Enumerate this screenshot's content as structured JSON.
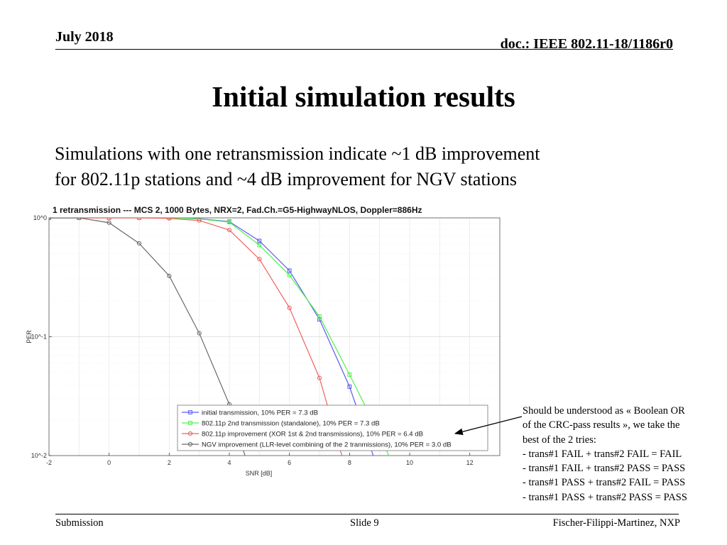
{
  "header": {
    "date": "July 2018",
    "doc": "doc.: IEEE 802.11-18/1186r0"
  },
  "title": "Initial simulation results",
  "body_lines": [
    "Simulations with one retransmission indicate ~1 dB improvement",
    "for 802.11p stations and ~4 dB improvement for NGV stations"
  ],
  "note_lines": [
    "Should be understood as « Boolean OR",
    "of the CRC-pass results », we take the",
    "best of the 2 tries:",
    "- trans#1 FAIL + trans#2 FAIL = FAIL",
    "- trans#1 FAIL + trans#2 PASS = PASS",
    "- trans#1 PASS + trans#2 FAIL = PASS",
    "- trans#1 PASS + trans#2 PASS = PASS"
  ],
  "footer": {
    "left": "Submission",
    "middle": "Slide 9",
    "right": "Fischer-Filippi-Martinez, NXP"
  },
  "chart_data": {
    "type": "line",
    "title": "1 retransmission --- MCS 2, 1000 Bytes, NRX=2, Fad.Ch.=G5-HighwayNLOS, Doppler=886Hz",
    "xlabel": "SNR [dB]",
    "ylabel": "PER",
    "xlim": [
      -2,
      13
    ],
    "ylim": [
      0.01,
      1
    ],
    "yscale": "log",
    "grid": true,
    "legend_position": "bottom-right",
    "xticks": [
      "-2",
      "0",
      "2",
      "4",
      "6",
      "8",
      "10",
      "12"
    ],
    "xtick_values": [
      -2,
      0,
      2,
      4,
      6,
      8,
      10,
      12
    ],
    "yticks": [
      "10^0",
      "10^-1",
      "10^-2"
    ],
    "ytick_values": [
      1,
      0.1,
      0.01
    ],
    "series": [
      {
        "name": "initial transmission, 10% PER = 7.3 dB",
        "color": "#5a5af0",
        "x": [
          -2,
          -1,
          0,
          1,
          2,
          3,
          4,
          5,
          6,
          7,
          8,
          9
        ],
        "y": [
          1,
          1,
          1,
          1,
          1,
          0.985,
          0.93,
          0.64,
          0.36,
          0.14,
          0.038,
          0.007
        ]
      },
      {
        "name": "802.11p 2nd transmission (standalone), 10% PER = 7.3 dB",
        "color": "#4ef04e",
        "x": [
          -2,
          -1,
          0,
          1,
          2,
          3,
          4,
          5,
          6,
          7,
          8,
          9,
          10
        ],
        "y": [
          1,
          1,
          1,
          1,
          1,
          0.98,
          0.92,
          0.59,
          0.33,
          0.148,
          0.048,
          0.015,
          0.004
        ]
      },
      {
        "name": "802.11p improvement (XOR 1st & 2nd transmissions), 10% PER = 6.4 dB",
        "color": "#f06060",
        "x": [
          -2,
          -1,
          0,
          1,
          2,
          3,
          4,
          5,
          6,
          7,
          8
        ],
        "y": [
          1,
          1,
          1,
          1,
          0.99,
          0.95,
          0.79,
          0.45,
          0.175,
          0.045,
          0.006
        ]
      },
      {
        "name": "NGV improvement (LLR-level combining of the 2 tranmissions), 10% PER = 3.0 dB",
        "color": "#6b6b6b",
        "x": [
          -2,
          -1,
          0,
          1,
          2,
          3,
          4,
          5
        ],
        "y": [
          1,
          1,
          0.91,
          0.61,
          0.325,
          0.107,
          0.027,
          0.004
        ]
      }
    ]
  }
}
